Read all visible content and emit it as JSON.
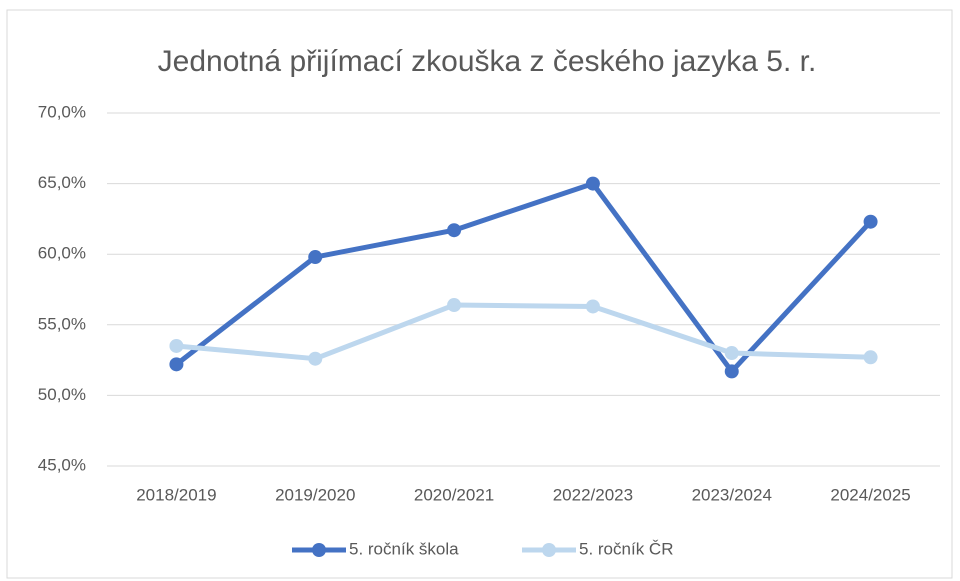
{
  "chart_data": {
    "type": "line",
    "title": "Jednotná přijímací zkouška z českého jazyka 5. r.",
    "categories": [
      "2018/2019",
      "2019/2020",
      "2020/2021",
      "2022/2023",
      "2023/2024",
      "2024/2025"
    ],
    "series": [
      {
        "name": "5. ročník škola",
        "color": "#4472c4",
        "values": [
          52.2,
          59.8,
          61.7,
          65.0,
          51.7,
          62.3
        ]
      },
      {
        "name": "5. ročník ČR",
        "color": "#bdd7ee",
        "values": [
          53.5,
          52.6,
          56.4,
          56.3,
          53.0,
          52.7
        ]
      }
    ],
    "ylim": [
      45,
      70
    ],
    "yticks": [
      {
        "value": 45,
        "label": "45,0%"
      },
      {
        "value": 50,
        "label": "50,0%"
      },
      {
        "value": 55,
        "label": "55,0%"
      },
      {
        "value": 60,
        "label": "60,0%"
      },
      {
        "value": 65,
        "label": "65,0%"
      },
      {
        "value": 70,
        "label": "70,0%"
      }
    ],
    "grid": true,
    "legend": "bottom"
  }
}
